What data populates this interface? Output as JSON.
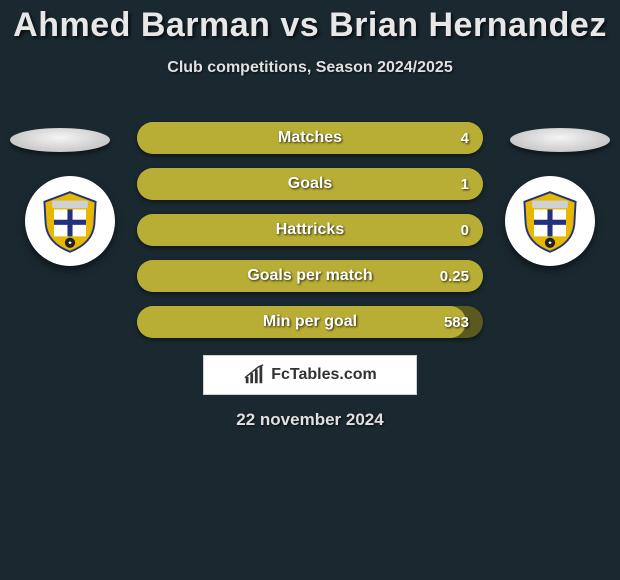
{
  "title": "Ahmed Barman vs Brian Hernandez",
  "subtitle": "Club competitions, Season 2024/2025",
  "date": "22 november 2024",
  "brand": "FcTables.com",
  "colors": {
    "background": "#1a2930",
    "bar_track": "#5a5a20",
    "bar_fill": "#b9ae35",
    "brand_bg": "#ffffff",
    "brand_text": "#333333",
    "text": "#e7e7e7"
  },
  "badge": {
    "shield_top": "#d0d0d0",
    "shield_blue": "#23327a",
    "shield_yellow": "#e6b800",
    "shield_white": "#ffffff"
  },
  "stats": [
    {
      "label": "Matches",
      "value": "4",
      "fill_pct": 100
    },
    {
      "label": "Goals",
      "value": "1",
      "fill_pct": 100
    },
    {
      "label": "Hattricks",
      "value": "0",
      "fill_pct": 100
    },
    {
      "label": "Goals per match",
      "value": "0.25",
      "fill_pct": 100
    },
    {
      "label": "Min per goal",
      "value": "583",
      "fill_pct": 95
    }
  ]
}
